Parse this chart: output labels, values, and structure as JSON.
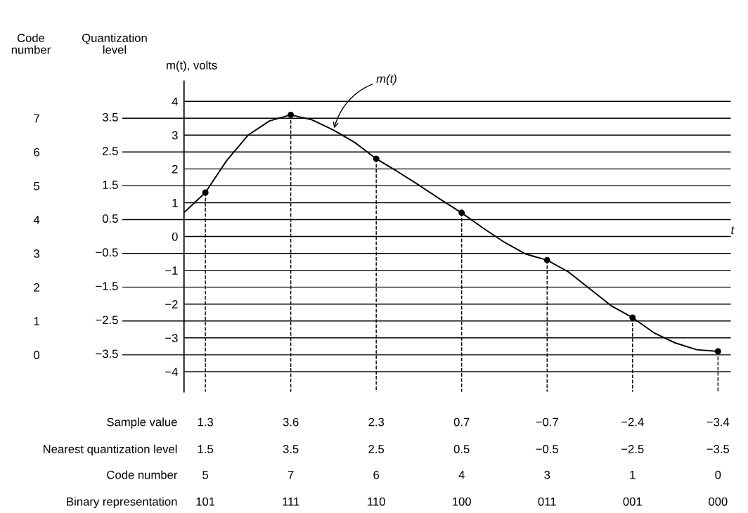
{
  "chart_data": {
    "type": "line",
    "ylabel": "m(t), volts",
    "y2label": "Code number",
    "y3label": "Quantization level",
    "xlabel": "t",
    "categories": [
      null,
      null,
      null,
      null,
      null,
      null,
      null,
      null,
      null,
      null,
      null,
      null,
      null,
      null,
      null,
      null,
      null,
      null,
      null,
      null,
      null,
      null,
      null,
      null,
      null,
      null
    ],
    "ylim": [
      -4.6,
      4.6
    ],
    "yticks": [
      {
        "value": -4,
        "label": "−4"
      },
      {
        "value": -3,
        "label": "−3"
      },
      {
        "value": -2,
        "label": "−2"
      },
      {
        "value": -1,
        "label": "−1"
      },
      0,
      1,
      2,
      3,
      4
    ],
    "y2lim": [
      -1.1,
      8.1
    ],
    "y2ticks": [
      7,
      6,
      5,
      4,
      3,
      2,
      1,
      0
    ],
    "tick_labels": "y",
    "grid": "y",
    "ref_lines": [
      {
        "axis": "y",
        "value": 3.5,
        "label": "3.5"
      },
      {
        "axis": "y",
        "value": 2.5,
        "label": "2.5"
      },
      {
        "axis": "y",
        "value": 1.5,
        "label": "1.5"
      },
      {
        "axis": "y",
        "value": 0.5,
        "label": "0.5"
      },
      {
        "axis": "y",
        "value": -0.5,
        "label": "−0.5"
      },
      {
        "axis": "y",
        "value": -1.5,
        "label": "−1.5"
      },
      {
        "axis": "y",
        "value": -2.5,
        "label": "−2.5"
      },
      {
        "axis": "y",
        "value": -3.5,
        "label": "−3.5"
      }
    ],
    "series": [
      {
        "name": "m(t)",
        "color": "#000000",
        "marker": "none",
        "line_style": "solid",
        "values": [
          0.71,
          1.3,
          2.25,
          3.0,
          3.42,
          3.6,
          3.45,
          3.15,
          2.78,
          2.3,
          1.92,
          1.52,
          1.1,
          0.7,
          0.25,
          -0.17,
          -0.52,
          -0.7,
          -1.05,
          -1.55,
          -2.05,
          -2.4,
          -2.85,
          -3.15,
          -3.35,
          -3.4
        ]
      },
      {
        "type": "scatter",
        "color": "#000000",
        "marker": "circle",
        "values": [
          null,
          1.3,
          null,
          null,
          null,
          3.6,
          null,
          null,
          null,
          2.3,
          null,
          null,
          null,
          0.7,
          null,
          null,
          null,
          -0.7,
          null,
          null,
          null,
          -2.4,
          null,
          null,
          null,
          -3.4
        ],
        "value_labels": [
          null,
          "1.3",
          null,
          null,
          null,
          "3.6",
          null,
          null,
          null,
          "2.3",
          null,
          null,
          null,
          "0.7",
          null,
          null,
          null,
          "−0.7",
          null,
          null,
          null,
          "−2.4",
          null,
          null,
          null,
          "−3.4"
        ]
      }
    ],
    "annotations": [
      "Sample value",
      "Nearest quantization level",
      "1.5",
      "3.5",
      "2.5",
      "0.5",
      "−0.5",
      "−2.5",
      "−3.5",
      "Code number",
      "5",
      "7",
      "6",
      "4",
      "3",
      "1",
      "0",
      "Binary representation",
      "101",
      "111",
      "110",
      "100",
      "011",
      "001",
      "000"
    ]
  }
}
